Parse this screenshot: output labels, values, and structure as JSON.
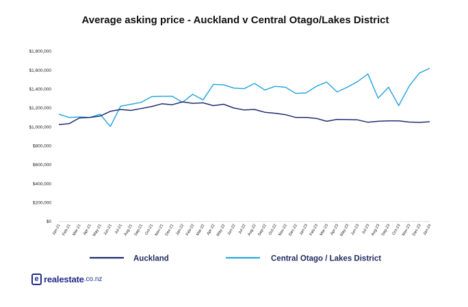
{
  "chart_data": {
    "type": "line",
    "title": "Average asking price - Auckland v Central Otago/Lakes District",
    "xlabel": "",
    "ylabel": "",
    "ylim": [
      0,
      1800000
    ],
    "yticks": [
      "$0",
      "$200,000",
      "$400,000",
      "$600,000",
      "$800,000",
      "$1,000,000",
      "$1,200,000",
      "$1,400,000",
      "$1,600,000",
      "$1,800,000"
    ],
    "ytick_values": [
      0,
      200000,
      400000,
      600000,
      800000,
      1000000,
      1200000,
      1400000,
      1600000,
      1800000
    ],
    "categories": [
      "Jan-21",
      "Feb-21",
      "Mar-21",
      "Apr-21",
      "May-21",
      "Jun-21",
      "Jul-21",
      "Aug-21",
      "Sep-21",
      "Oct-21",
      "Nov-21",
      "Dec-21",
      "Jan-22",
      "Feb-22",
      "Mar-22",
      "Apr-22",
      "May-22",
      "Jun-22",
      "Jul-22",
      "Aug-22",
      "Sep-22",
      "Oct-22",
      "Nov-22",
      "Dec-22",
      "Jan-23",
      "Feb-23",
      "Mar-23",
      "Apr-23",
      "May-23",
      "Jun-23",
      "Jul-23",
      "Aug-23",
      "Sep-23",
      "Oct-23",
      "Nov-23",
      "Dec-23",
      "Jan-24"
    ],
    "grid": false,
    "legend_position": "bottom",
    "series": [
      {
        "name": "Auckland",
        "color": "#1f2a6e",
        "values": [
          1025000,
          1035000,
          1095000,
          1100000,
          1115000,
          1165000,
          1185000,
          1175000,
          1195000,
          1215000,
          1245000,
          1235000,
          1265000,
          1250000,
          1255000,
          1225000,
          1240000,
          1200000,
          1180000,
          1185000,
          1155000,
          1145000,
          1130000,
          1100000,
          1100000,
          1090000,
          1060000,
          1080000,
          1078000,
          1075000,
          1050000,
          1060000,
          1065000,
          1065000,
          1052000,
          1048000,
          1055000
        ]
      },
      {
        "name": "Central Otago / Lakes District",
        "color": "#2aa7dc",
        "values": [
          1135000,
          1100000,
          1105000,
          1100000,
          1135000,
          1005000,
          1220000,
          1240000,
          1260000,
          1320000,
          1325000,
          1325000,
          1260000,
          1345000,
          1285000,
          1450000,
          1445000,
          1410000,
          1405000,
          1460000,
          1390000,
          1430000,
          1420000,
          1355000,
          1360000,
          1430000,
          1475000,
          1370000,
          1420000,
          1480000,
          1560000,
          1305000,
          1420000,
          1225000,
          1430000,
          1570000,
          1620000
        ]
      }
    ]
  },
  "logo": {
    "mark": "e",
    "name": "realestate",
    "tld": ".co.nz"
  }
}
